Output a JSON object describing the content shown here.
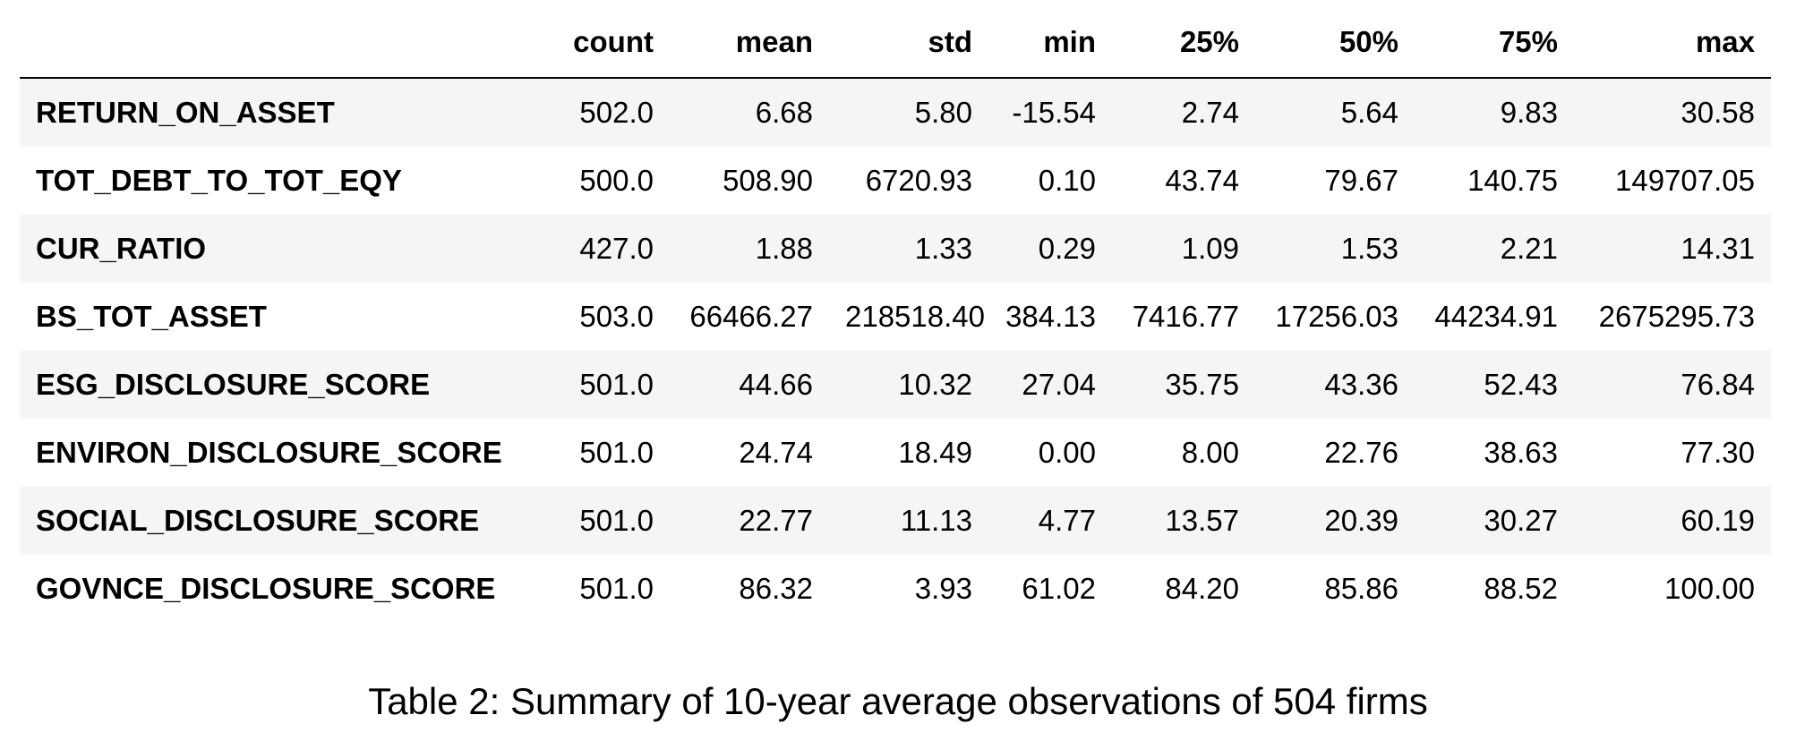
{
  "chart_data": {
    "type": "table",
    "columns": [
      "",
      "count",
      "mean",
      "std",
      "min",
      "25%",
      "50%",
      "75%",
      "max"
    ],
    "rows": [
      [
        "RETURN_ON_ASSET",
        "502.0",
        "6.68",
        "5.80",
        "-15.54",
        "2.74",
        "5.64",
        "9.83",
        "30.58"
      ],
      [
        "TOT_DEBT_TO_TOT_EQY",
        "500.0",
        "508.90",
        "6720.93",
        "0.10",
        "43.74",
        "79.67",
        "140.75",
        "149707.05"
      ],
      [
        "CUR_RATIO",
        "427.0",
        "1.88",
        "1.33",
        "0.29",
        "1.09",
        "1.53",
        "2.21",
        "14.31"
      ],
      [
        "BS_TOT_ASSET",
        "503.0",
        "66466.27",
        "218518.40",
        "384.13",
        "7416.77",
        "17256.03",
        "44234.91",
        "2675295.73"
      ],
      [
        "ESG_DISCLOSURE_SCORE",
        "501.0",
        "44.66",
        "10.32",
        "27.04",
        "35.75",
        "43.36",
        "52.43",
        "76.84"
      ],
      [
        "ENVIRON_DISCLOSURE_SCORE",
        "501.0",
        "24.74",
        "18.49",
        "0.00",
        "8.00",
        "22.76",
        "38.63",
        "77.30"
      ],
      [
        "SOCIAL_DISCLOSURE_SCORE",
        "501.0",
        "22.77",
        "11.13",
        "4.77",
        "13.57",
        "20.39",
        "30.27",
        "60.19"
      ],
      [
        "GOVNCE_DISCLOSURE_SCORE",
        "501.0",
        "86.32",
        "3.93",
        "61.02",
        "84.20",
        "85.86",
        "88.52",
        "100.00"
      ]
    ],
    "caption": "Table 2: Summary of 10-year average observations of 504 firms"
  }
}
